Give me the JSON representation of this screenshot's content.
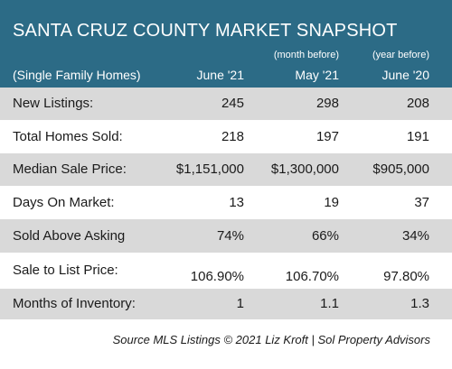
{
  "header": {
    "title": "SANTA CRUZ COUNTY MARKET SNAPSHOT"
  },
  "table": {
    "columns": [
      {
        "label": "(Single Family Homes)"
      },
      {
        "label": "June '21"
      },
      {
        "label": "May '21",
        "note": "(month before)"
      },
      {
        "label": "June '20",
        "note": "(year before)"
      }
    ],
    "rows": [
      [
        "New Listings:",
        "245",
        "298",
        "208"
      ],
      [
        "Total Homes Sold:",
        "218",
        "197",
        "191"
      ],
      [
        "Median Sale Price:",
        "$1,151,000",
        "$1,300,000",
        "$905,000"
      ],
      [
        "Days On Market:",
        "13",
        "19",
        "37"
      ],
      [
        "Sold Above Asking",
        "74%",
        "66%",
        "34%"
      ],
      [
        "Sale to List Price:",
        "106.90%",
        "106.70%",
        "97.80%"
      ],
      [
        "Months of Inventory:",
        "1",
        "1.1",
        "1.3"
      ]
    ]
  },
  "footer": {
    "source": "Source MLS Listings © 2021 Liz Kroft | Sol Property Advisors"
  }
}
